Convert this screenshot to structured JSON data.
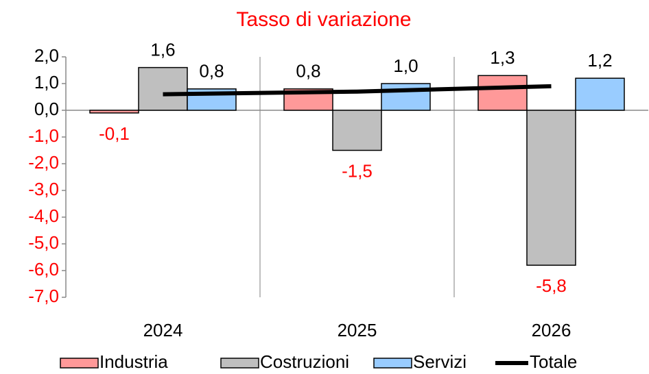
{
  "chart_data": {
    "type": "bar",
    "title": "Tasso di variazione",
    "categories": [
      "2024",
      "2025",
      "2026"
    ],
    "series": [
      {
        "name": "Industria",
        "color": "#ff9999",
        "values": [
          -0.1,
          0.8,
          1.3
        ],
        "value_labels": [
          "-0,1",
          "0,8",
          "1,3"
        ]
      },
      {
        "name": "Costruzioni",
        "color": "#bfbfbf",
        "values": [
          1.6,
          -1.5,
          -5.8
        ],
        "value_labels": [
          "1,6",
          "-1,5",
          "-5,8"
        ]
      },
      {
        "name": "Servizi",
        "color": "#99ccff",
        "values": [
          0.8,
          1.0,
          1.2
        ],
        "value_labels": [
          "0,8",
          "1,0",
          "1,2"
        ]
      },
      {
        "name": "Totale",
        "color": "#000000",
        "type": "line",
        "values": [
          0.6,
          0.7,
          0.9
        ]
      }
    ],
    "ylim": [
      -7,
      2
    ],
    "yticks": [
      {
        "value": 2,
        "label": "2,0"
      },
      {
        "value": 1,
        "label": "1,0"
      },
      {
        "value": 0,
        "label": "0,0"
      },
      {
        "value": -1,
        "label": "-1,0"
      },
      {
        "value": -2,
        "label": "-2,0"
      },
      {
        "value": -3,
        "label": "-3,0"
      },
      {
        "value": -4,
        "label": "-4,0"
      },
      {
        "value": -5,
        "label": "-5,0"
      },
      {
        "value": -6,
        "label": "-6,0"
      },
      {
        "value": -7,
        "label": "-7,0"
      }
    ],
    "legend": "bottom"
  }
}
